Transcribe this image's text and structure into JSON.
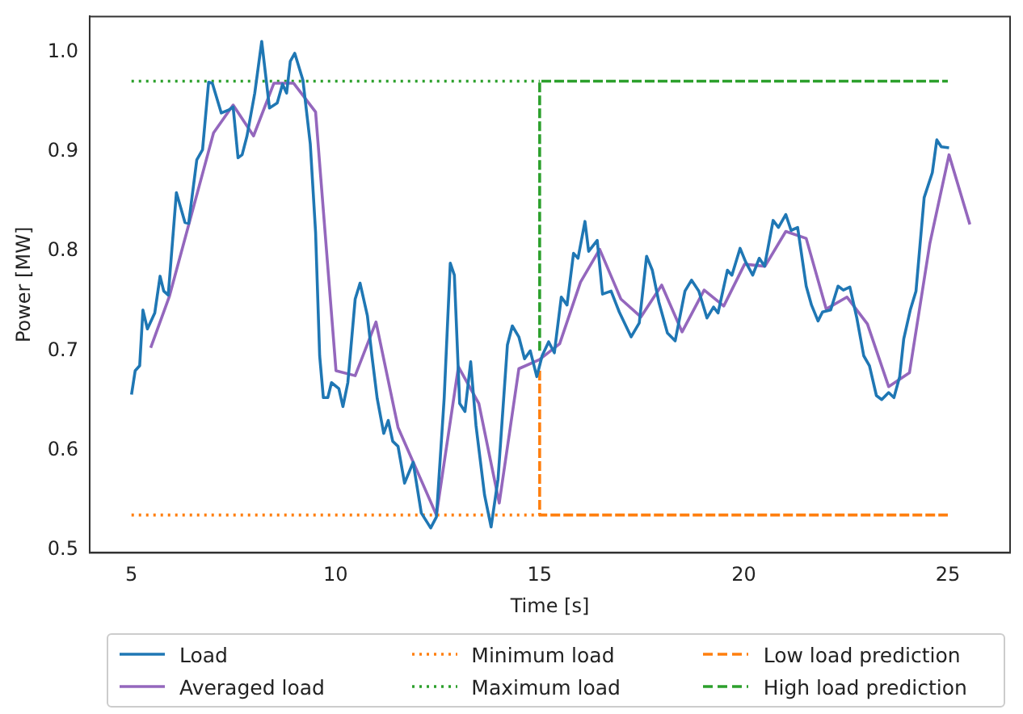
{
  "chart_data": {
    "type": "line",
    "xlabel": "Time [s]",
    "ylabel": "Power [MW]",
    "xlim": [
      3.975,
      26.525
    ],
    "ylim": [
      0.497,
      1.036
    ],
    "xticks": [
      5,
      10,
      15,
      20,
      25
    ],
    "yticks": [
      0.5,
      0.6,
      0.7,
      0.8,
      0.9,
      {
        "value": 1.0,
        "label": "1.0"
      }
    ],
    "grid": false,
    "legend": "bottom",
    "marker": "none",
    "series": [
      {
        "name": "Load",
        "color": "#1f77b4",
        "line_style": "solid",
        "x": [
          5.0,
          5.09,
          5.2,
          5.28,
          5.39,
          5.57,
          5.7,
          5.79,
          5.9,
          6.1,
          6.31,
          6.4,
          6.6,
          6.74,
          6.89,
          6.98,
          7.2,
          7.38,
          7.49,
          7.61,
          7.71,
          7.83,
          8.02,
          8.19,
          8.38,
          8.57,
          8.7,
          8.8,
          8.89,
          9.0,
          9.2,
          9.38,
          9.51,
          9.61,
          9.7,
          9.81,
          9.9,
          10.08,
          10.18,
          10.3,
          10.48,
          10.6,
          10.78,
          10.89,
          11.02,
          11.18,
          11.29,
          11.4,
          11.53,
          11.69,
          11.9,
          12.1,
          12.33,
          12.47,
          12.66,
          12.81,
          12.91,
          13.04,
          13.17,
          13.31,
          13.44,
          13.65,
          13.81,
          13.98,
          14.21,
          14.33,
          14.49,
          14.63,
          14.77,
          14.93,
          15.06,
          15.22,
          15.36,
          15.53,
          15.67,
          15.83,
          15.94,
          16.11,
          16.2,
          16.41,
          16.54,
          16.75,
          16.95,
          17.24,
          17.44,
          17.62,
          17.76,
          17.92,
          18.13,
          18.32,
          18.56,
          18.72,
          18.9,
          19.1,
          19.26,
          19.37,
          19.6,
          19.71,
          19.91,
          20.05,
          20.22,
          20.38,
          20.51,
          20.72,
          20.85,
          21.03,
          21.16,
          21.32,
          21.53,
          21.66,
          21.82,
          21.93,
          22.13,
          22.31,
          22.44,
          22.6,
          22.77,
          22.94,
          23.08,
          23.25,
          23.38,
          23.55,
          23.68,
          23.82,
          23.92,
          24.08,
          24.22,
          24.42,
          24.62,
          24.73,
          24.84,
          25.03
        ],
        "values": [
          0.656,
          0.68,
          0.685,
          0.741,
          0.722,
          0.738,
          0.775,
          0.76,
          0.756,
          0.859,
          0.829,
          0.828,
          0.892,
          0.902,
          0.97,
          0.969,
          0.939,
          0.942,
          0.945,
          0.894,
          0.897,
          0.916,
          0.959,
          1.011,
          0.944,
          0.949,
          0.968,
          0.959,
          0.991,
          0.999,
          0.972,
          0.908,
          0.819,
          0.695,
          0.653,
          0.653,
          0.668,
          0.662,
          0.644,
          0.668,
          0.752,
          0.768,
          0.735,
          0.695,
          0.652,
          0.617,
          0.63,
          0.609,
          0.604,
          0.567,
          0.588,
          0.537,
          0.522,
          0.533,
          0.652,
          0.788,
          0.776,
          0.647,
          0.639,
          0.689,
          0.625,
          0.555,
          0.523,
          0.571,
          0.706,
          0.725,
          0.714,
          0.692,
          0.7,
          0.674,
          0.695,
          0.709,
          0.698,
          0.754,
          0.746,
          0.798,
          0.793,
          0.83,
          0.8,
          0.811,
          0.757,
          0.76,
          0.739,
          0.714,
          0.728,
          0.795,
          0.781,
          0.749,
          0.718,
          0.71,
          0.76,
          0.771,
          0.76,
          0.733,
          0.744,
          0.738,
          0.781,
          0.776,
          0.803,
          0.789,
          0.776,
          0.793,
          0.785,
          0.831,
          0.824,
          0.837,
          0.821,
          0.824,
          0.765,
          0.746,
          0.73,
          0.739,
          0.741,
          0.765,
          0.761,
          0.764,
          0.733,
          0.695,
          0.685,
          0.655,
          0.651,
          0.658,
          0.653,
          0.674,
          0.712,
          0.741,
          0.76,
          0.854,
          0.879,
          0.912,
          0.905,
          0.904
        ]
      },
      {
        "name": "Averaged load",
        "color": "#9467bd",
        "line_style": "solid",
        "x": [
          5.47,
          5.93,
          7.01,
          7.49,
          7.99,
          8.49,
          8.97,
          9.51,
          10.01,
          10.48,
          10.99,
          11.53,
          12.47,
          13.01,
          13.51,
          14.01,
          14.49,
          14.99,
          15.49,
          16.0,
          16.47,
          16.99,
          17.48,
          17.99,
          18.49,
          19.03,
          19.51,
          20.02,
          20.52,
          21.03,
          21.53,
          22.02,
          22.53,
          23.03,
          23.55,
          24.06,
          24.56,
          25.03,
          25.54
        ],
        "values": [
          0.703,
          0.755,
          0.919,
          0.947,
          0.916,
          0.969,
          0.969,
          0.94,
          0.68,
          0.675,
          0.729,
          0.623,
          0.535,
          0.684,
          0.647,
          0.547,
          0.682,
          0.691,
          0.707,
          0.769,
          0.802,
          0.752,
          0.734,
          0.766,
          0.719,
          0.761,
          0.745,
          0.787,
          0.785,
          0.82,
          0.813,
          0.742,
          0.754,
          0.727,
          0.664,
          0.678,
          0.808,
          0.897,
          0.827
        ]
      },
      {
        "name": "Minimum load",
        "color": "#ff7f0e",
        "line_style": "dotted",
        "x": [
          5,
          15
        ],
        "values": [
          0.535,
          0.535
        ]
      },
      {
        "name": "Maximum load",
        "color": "#2ca02c",
        "line_style": "dotted",
        "x": [
          5,
          15
        ],
        "values": [
          0.971,
          0.971
        ]
      },
      {
        "name": "Low load prediction",
        "color": "#ff7f0e",
        "line_style": "dashed",
        "x": [
          15,
          15,
          25
        ],
        "values": [
          0.68,
          0.535,
          0.535
        ]
      },
      {
        "name": "High load prediction",
        "color": "#2ca02c",
        "line_style": "dashed",
        "x": [
          15,
          15,
          25
        ],
        "values": [
          0.7,
          0.971,
          0.971
        ]
      }
    ]
  }
}
